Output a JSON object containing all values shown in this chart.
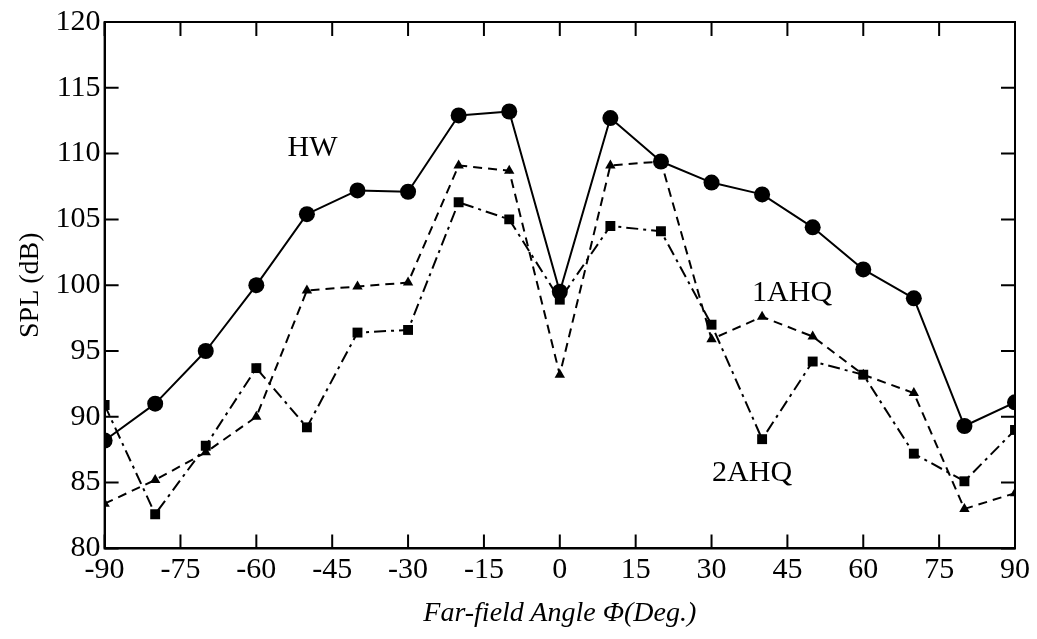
{
  "chart_data": {
    "type": "line",
    "xlabel": "Far-field Angle Φ(Deg.)",
    "ylabel": "SPL (dB)",
    "x": [
      -90,
      -80,
      -70,
      -60,
      -50,
      -40,
      -30,
      -20,
      -10,
      0,
      10,
      20,
      30,
      40,
      50,
      60,
      70,
      80,
      90
    ],
    "series": [
      {
        "name": "HW",
        "color": "#000000",
        "marker": "circle",
        "line_style": "solid",
        "values": [
          88.2,
          91.0,
          95.0,
          100.0,
          105.4,
          107.2,
          107.1,
          112.9,
          113.2,
          99.5,
          112.7,
          109.4,
          107.8,
          106.9,
          104.4,
          101.2,
          99.0,
          89.3,
          91.1
        ]
      },
      {
        "name": "1AHQ",
        "color": "#000000",
        "marker": "triangle",
        "line_style": "dashed",
        "values": [
          83.4,
          85.2,
          87.3,
          90.0,
          99.6,
          99.9,
          100.2,
          109.1,
          108.7,
          93.2,
          109.1,
          109.4,
          95.9,
          97.6,
          96.1,
          93.2,
          91.8,
          83.0,
          84.2
        ]
      },
      {
        "name": "2AHQ",
        "color": "#000000",
        "marker": "square",
        "line_style": "dotted",
        "values": [
          90.9,
          82.6,
          87.8,
          93.7,
          89.2,
          96.4,
          96.6,
          106.3,
          105.0,
          98.9,
          104.5,
          104.1,
          97.0,
          88.3,
          94.2,
          93.2,
          87.2,
          85.1,
          89.0
        ]
      }
    ],
    "xlim": [
      -90,
      90
    ],
    "xticks": [
      -90,
      -75,
      -60,
      -45,
      -30,
      -15,
      0,
      15,
      30,
      45,
      60,
      75,
      90
    ],
    "ylim": [
      80,
      120
    ],
    "yticks": [
      80,
      85,
      90,
      95,
      100,
      105,
      110,
      115,
      120
    ],
    "grid": false,
    "legend": false
  }
}
